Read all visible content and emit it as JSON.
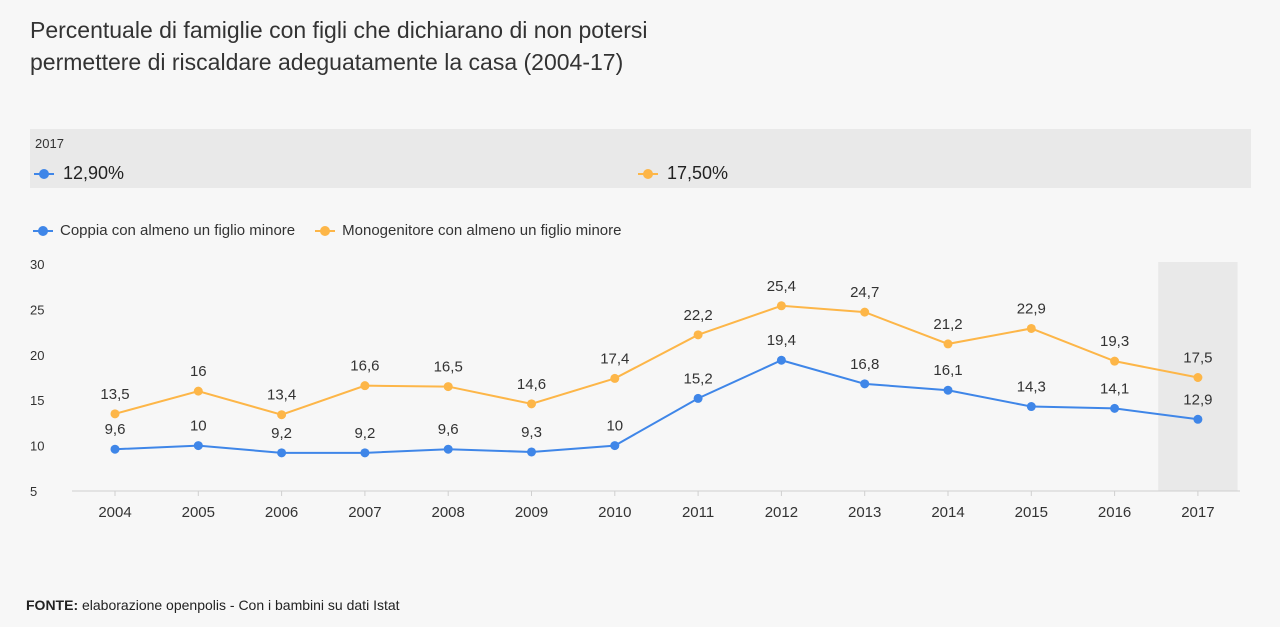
{
  "title": {
    "line1": "Percentuale di famiglie con figli che dichiarano di non potersi",
    "line2": "permettere di riscaldare adeguatamente la casa (2004-17)"
  },
  "tooltip": {
    "year": "2017",
    "values": [
      "12,90%",
      "17,50%"
    ]
  },
  "colors": {
    "blue": "#3f86e8",
    "orange": "#fdb648",
    "highlight_band": "#e9e9e9"
  },
  "chart_data": {
    "type": "line",
    "categories": [
      "2004",
      "2005",
      "2006",
      "2007",
      "2008",
      "2009",
      "2010",
      "2011",
      "2012",
      "2013",
      "2014",
      "2015",
      "2016",
      "2017"
    ],
    "ylim": [
      5,
      30
    ],
    "yticks": [
      5,
      10,
      15,
      20,
      25,
      30
    ],
    "highlighted_category": "2017",
    "legend_position": "top-left",
    "grid": false,
    "series": [
      {
        "name": "Coppia con almeno un figlio minore",
        "color": "#3f86e8",
        "values": [
          9.6,
          10,
          9.2,
          9.2,
          9.6,
          9.3,
          10,
          15.2,
          19.4,
          16.8,
          16.1,
          14.3,
          14.1,
          12.9
        ],
        "labels": [
          "9,6",
          "10",
          "9,2",
          "9,2",
          "9,6",
          "9,3",
          "10",
          "15,2",
          "19,4",
          "16,8",
          "16,1",
          "14,3",
          "14,1",
          "12,9"
        ]
      },
      {
        "name": "Monogenitore con almeno un figlio minore",
        "color": "#fdb648",
        "values": [
          13.5,
          16,
          13.4,
          16.6,
          16.5,
          14.6,
          17.4,
          22.2,
          25.4,
          24.7,
          21.2,
          22.9,
          19.3,
          17.5
        ],
        "labels": [
          "13,5",
          "16",
          "13,4",
          "16,6",
          "16,5",
          "14,6",
          "17,4",
          "22,2",
          "25,4",
          "24,7",
          "21,2",
          "22,9",
          "19,3",
          "17,5"
        ]
      }
    ]
  },
  "source": {
    "label": "FONTE:",
    "text": " elaborazione openpolis - Con i bambini su dati Istat"
  }
}
